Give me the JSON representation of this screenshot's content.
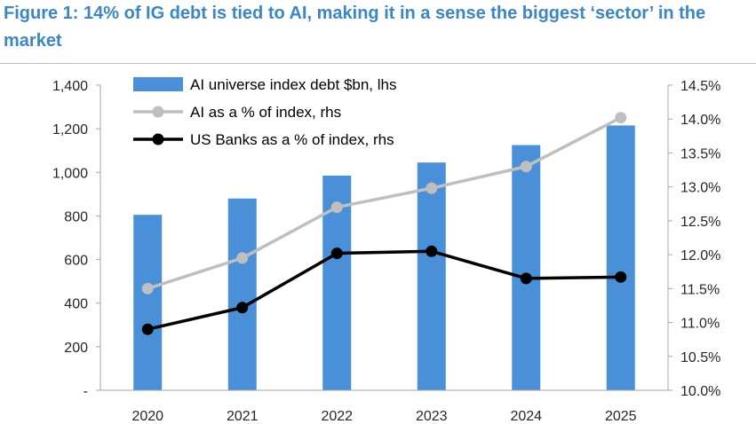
{
  "chart_data": {
    "type": "bar+line",
    "title": "Figure 1: 14% of IG debt is tied to AI, making it in a sense the biggest ‘sector’ in the market",
    "categories": [
      "2020",
      "2021",
      "2022",
      "2023",
      "2024",
      "2025"
    ],
    "bars": {
      "name": "AI universe index debt $bn, lhs",
      "values": [
        805,
        880,
        985,
        1045,
        1125,
        1215
      ],
      "color": "#4a90d9",
      "axis": "left"
    },
    "series": [
      {
        "name": "AI as a % of index, rhs",
        "values": [
          11.5,
          11.95,
          12.7,
          12.98,
          13.3,
          14.02
        ],
        "color": "#bfbfbf",
        "axis": "right"
      },
      {
        "name": "US Banks as a % of index, rhs",
        "values": [
          10.9,
          11.22,
          12.02,
          12.05,
          11.65,
          11.67
        ],
        "color": "#000000",
        "axis": "right"
      }
    ],
    "left_axis": {
      "ylim": [
        0,
        1400
      ],
      "ticks": [
        "-",
        "200",
        "400",
        "600",
        "800",
        "1,000",
        "1,200",
        "1,400"
      ]
    },
    "right_axis": {
      "ylim": [
        10.0,
        14.5
      ],
      "ticks": [
        "10.0%",
        "10.5%",
        "11.0%",
        "11.5%",
        "12.0%",
        "12.5%",
        "13.0%",
        "13.5%",
        "14.0%",
        "14.5%"
      ]
    },
    "legend_position": "top-left",
    "grid": false
  }
}
